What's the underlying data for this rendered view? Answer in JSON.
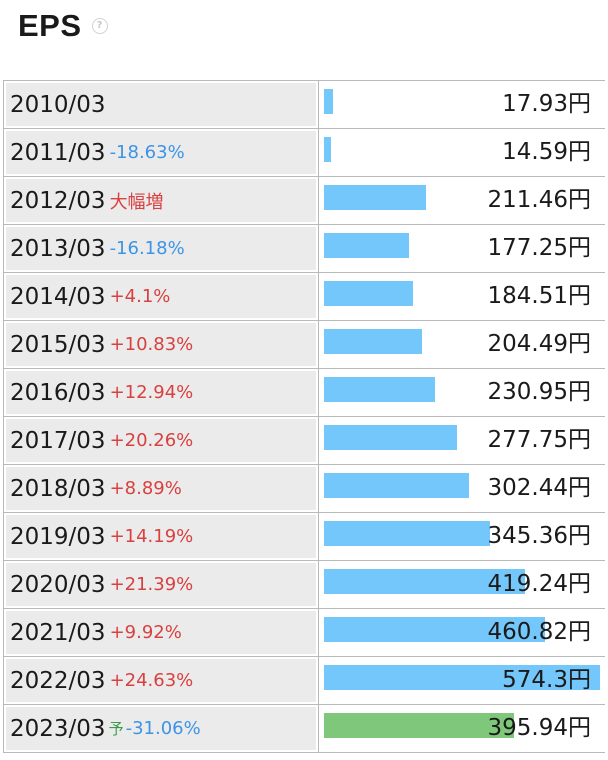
{
  "header": {
    "title": "EPS",
    "help_icon": "?"
  },
  "chart_data": {
    "type": "bar",
    "unit": "円",
    "rows": [
      {
        "year": "2010/03",
        "change": "",
        "value_label": "17.93円",
        "value": 17.93
      },
      {
        "year": "2011/03",
        "change": "-18.63%",
        "value_label": "14.59円",
        "value": 14.59
      },
      {
        "year": "2012/03",
        "change": "大幅増",
        "value_label": "211.46円",
        "value": 211.46
      },
      {
        "year": "2013/03",
        "change": "-16.18%",
        "value_label": "177.25円",
        "value": 177.25
      },
      {
        "year": "2014/03",
        "change": "+4.1%",
        "value_label": "184.51円",
        "value": 184.51
      },
      {
        "year": "2015/03",
        "change": "+10.83%",
        "value_label": "204.49円",
        "value": 204.49
      },
      {
        "year": "2016/03",
        "change": "+12.94%",
        "value_label": "230.95円",
        "value": 230.95
      },
      {
        "year": "2017/03",
        "change": "+20.26%",
        "value_label": "277.75円",
        "value": 277.75
      },
      {
        "year": "2018/03",
        "change": "+8.89%",
        "value_label": "302.44円",
        "value": 302.44
      },
      {
        "year": "2019/03",
        "change": "+14.19%",
        "value_label": "345.36円",
        "value": 345.36
      },
      {
        "year": "2020/03",
        "change": "+21.39%",
        "value_label": "419.24円",
        "value": 419.24
      },
      {
        "year": "2021/03",
        "change": "+9.92%",
        "value_label": "460.82円",
        "value": 460.82
      },
      {
        "year": "2022/03",
        "change": "+24.63%",
        "value_label": "574.3円",
        "value": 574.3
      },
      {
        "year": "2023/03",
        "forecast_mark": "予",
        "change": "-31.06%",
        "value_label": "395.94円",
        "value": 395.94,
        "forecast": true
      }
    ]
  },
  "colors": {
    "bar": "#74c7fb",
    "forecast_bar": "#7fc77a",
    "increase": "#d94040",
    "decrease": "#3c94e6",
    "forecast_mark": "#3c9a4b"
  }
}
